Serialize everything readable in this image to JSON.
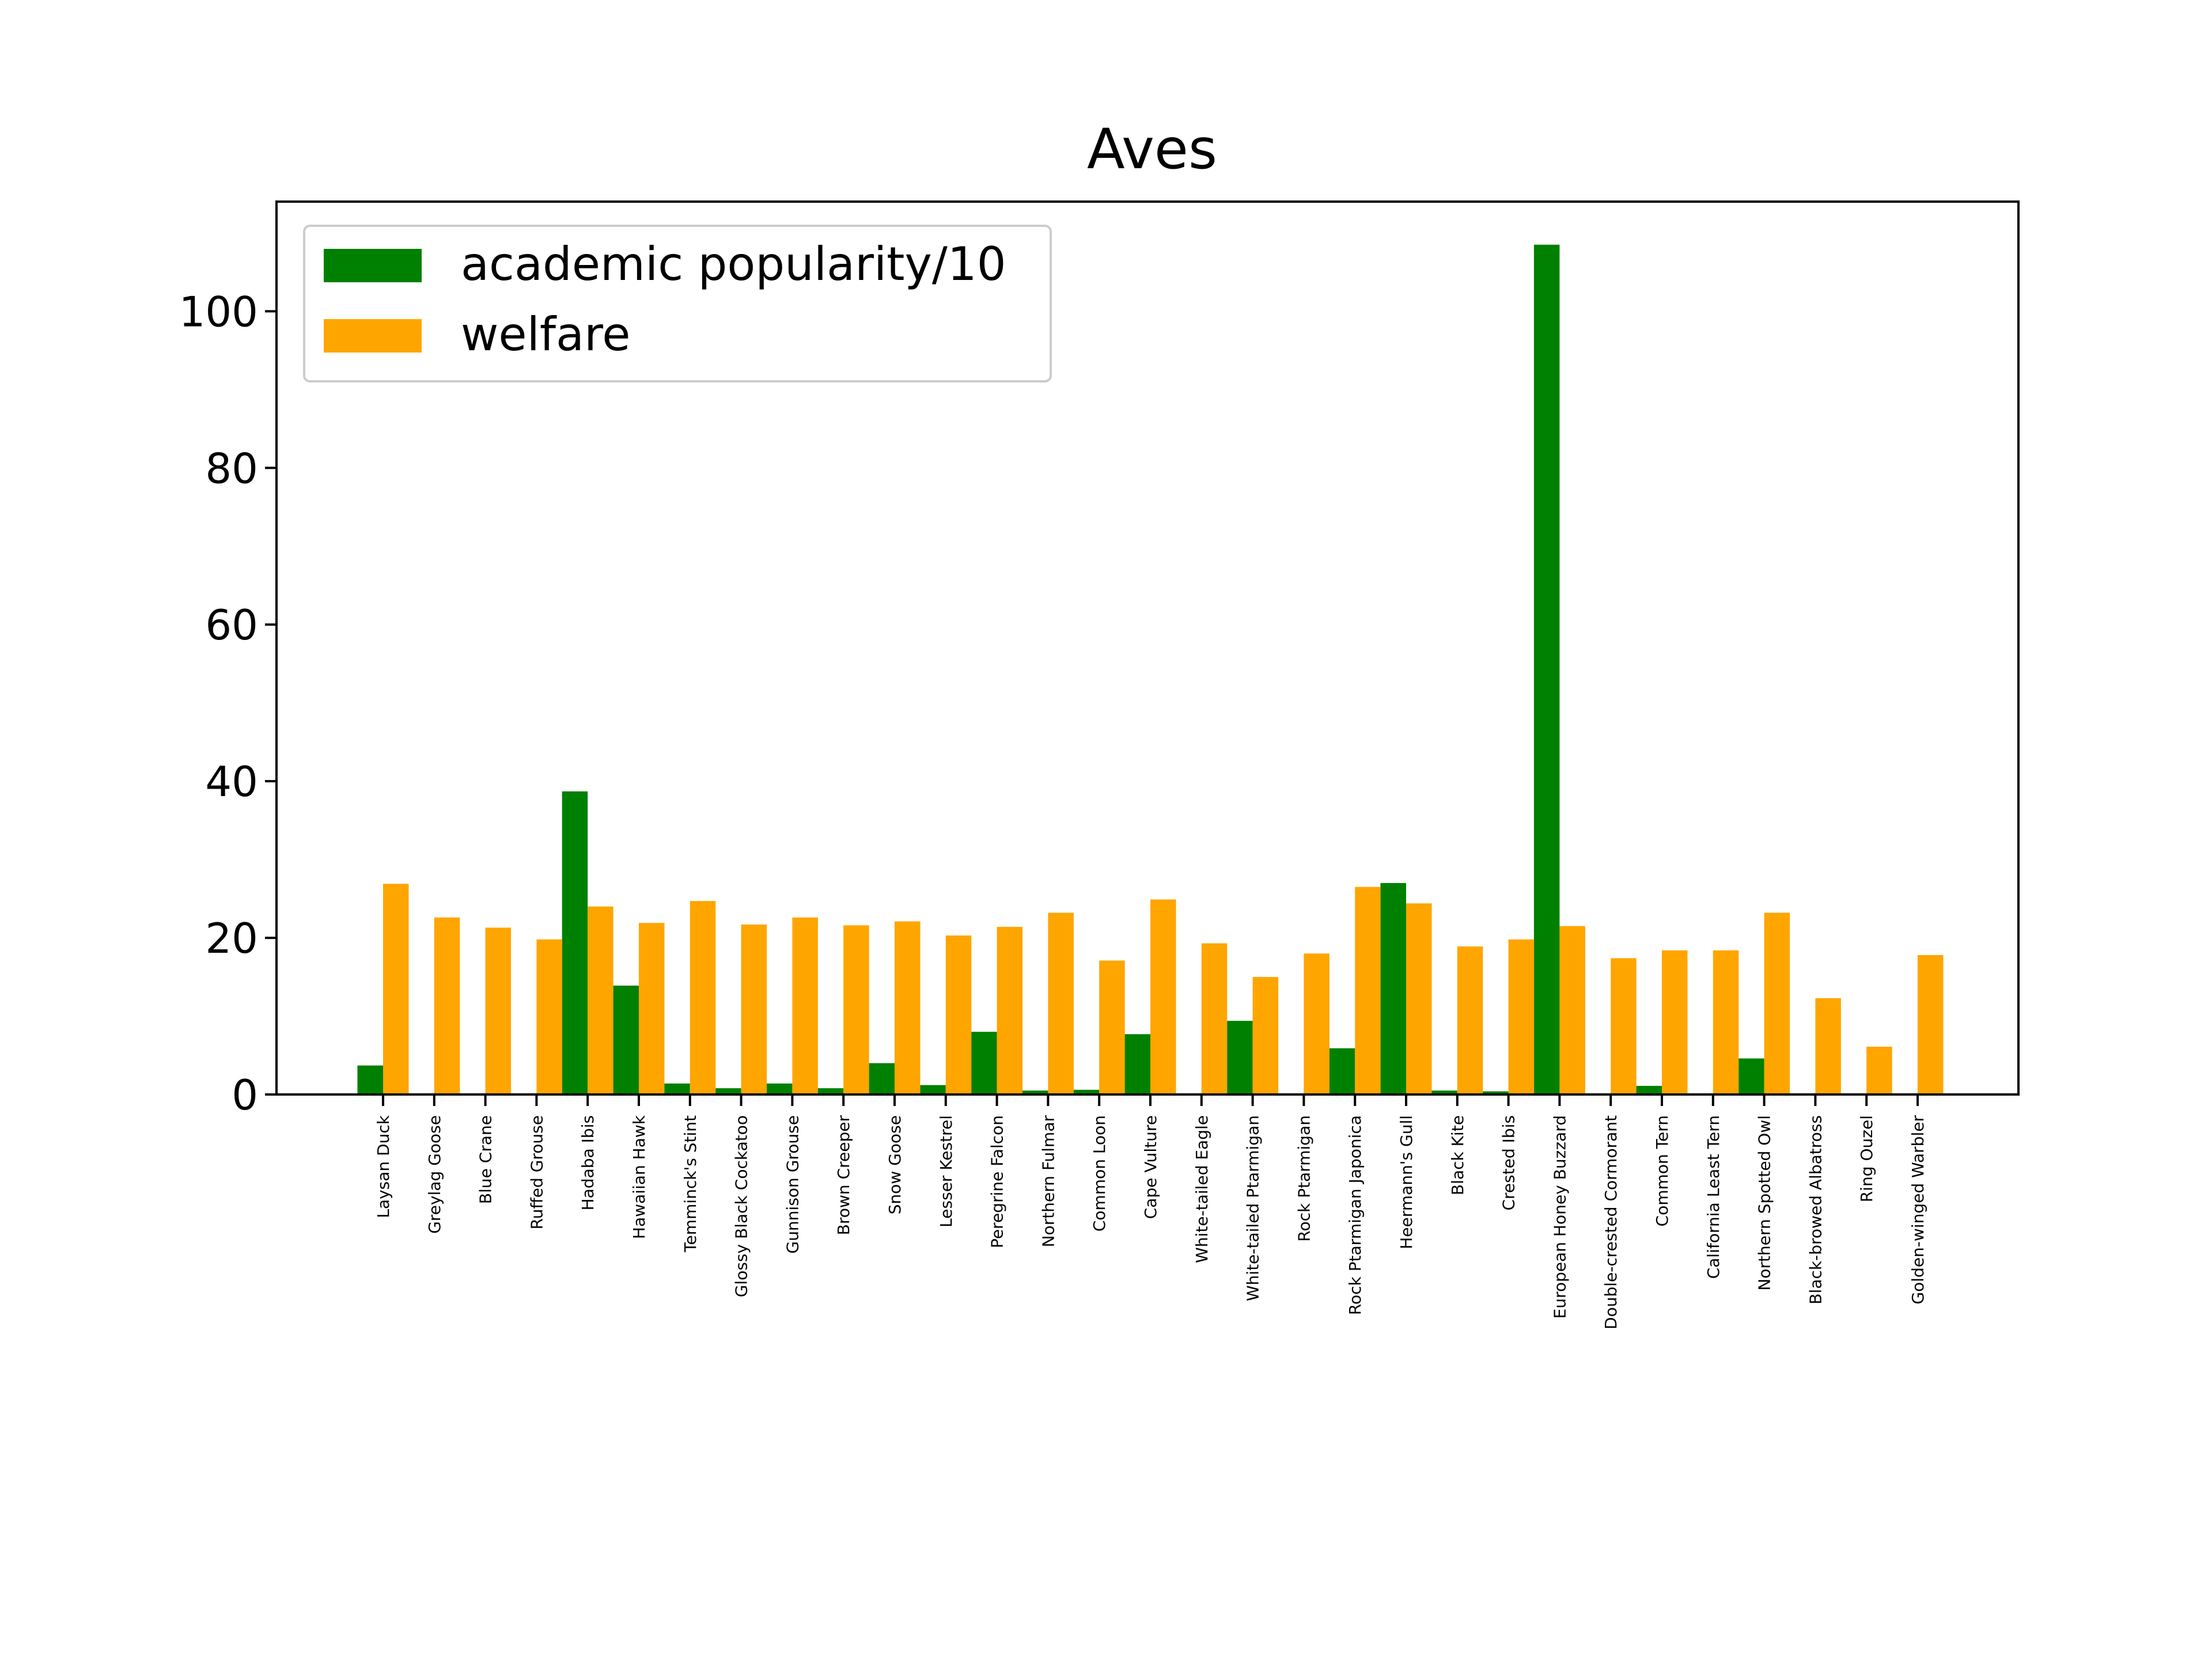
{
  "chart_data": {
    "type": "bar",
    "title": "Aves",
    "xlabel": "",
    "ylabel": "",
    "ylim": [
      0,
      114
    ],
    "yticks": [
      0,
      20,
      40,
      60,
      80,
      100
    ],
    "grid": false,
    "legend_position": "top-left",
    "categories": [
      "Laysan Duck",
      "Greylag Goose",
      "Blue Crane",
      "Ruffed Grouse",
      "Hadaba Ibis",
      "Hawaiian Hawk",
      "Temminck's Stint",
      "Glossy Black Cockatoo",
      "Gunnison Grouse",
      "Brown Creeper",
      "Snow Goose",
      "Lesser Kestrel",
      "Peregrine Falcon",
      "Northern Fulmar",
      "Common Loon",
      "Cape Vulture",
      "White-tailed Eagle",
      "White-tailed Ptarmigan",
      "Rock Ptarmigan",
      "Rock Ptarmigan Japonica",
      "Heermann's Gull",
      "Black Kite",
      "Crested Ibis",
      "European Honey Buzzard",
      "Double-crested Cormorant",
      "Common Tern",
      "California Least Tern",
      "Northern Spotted Owl",
      "Black-browed Albatross",
      "Ring Ouzel",
      "Golden-winged Warbler"
    ],
    "series": [
      {
        "name": "academic popularity/10",
        "color": "#008000",
        "values": [
          3.7,
          0,
          0,
          0,
          38.7,
          13.9,
          1.4,
          0.8,
          1.4,
          0.8,
          4.0,
          1.2,
          8.0,
          0.5,
          0.6,
          7.7,
          0,
          9.4,
          0,
          5.9,
          27.0,
          0.5,
          0.4,
          108.5,
          0,
          1.1,
          0,
          4.6,
          0,
          0,
          0
        ]
      },
      {
        "name": "welfare",
        "color": "#ffa500",
        "values": [
          26.9,
          22.6,
          21.3,
          19.8,
          24.0,
          21.9,
          24.7,
          21.7,
          22.6,
          21.6,
          22.1,
          20.3,
          21.4,
          23.2,
          17.1,
          24.9,
          19.3,
          15.0,
          18.0,
          26.5,
          24.4,
          18.9,
          19.8,
          21.5,
          17.4,
          18.4,
          18.4,
          23.2,
          12.3,
          6.1,
          17.8
        ]
      }
    ]
  }
}
